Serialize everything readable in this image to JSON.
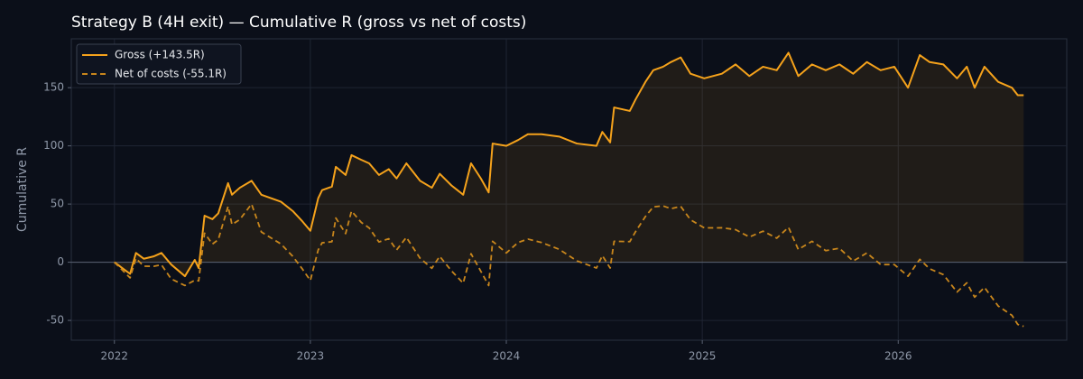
{
  "chart_data": {
    "type": "line",
    "title": "Strategy B (4H exit) — Cumulative R (gross vs net of costs)",
    "y_label": "Cumulative R",
    "x": [
      2022.0,
      2022.04,
      2022.08,
      2022.11,
      2022.15,
      2022.2,
      2022.24,
      2022.29,
      2022.36,
      2022.41,
      2022.43,
      2022.46,
      2022.5,
      2022.53,
      2022.58,
      2022.6,
      2022.64,
      2022.7,
      2022.75,
      2022.8,
      2022.85,
      2022.91,
      2022.96,
      2023.0,
      2023.04,
      2023.06,
      2023.11,
      2023.13,
      2023.18,
      2023.21,
      2023.26,
      2023.3,
      2023.35,
      2023.4,
      2023.44,
      2023.49,
      2023.56,
      2023.62,
      2023.66,
      2023.72,
      2023.78,
      2023.82,
      2023.87,
      2023.91,
      2023.93,
      2024.0,
      2024.06,
      2024.11,
      2024.18,
      2024.27,
      2024.36,
      2024.46,
      2024.49,
      2024.53,
      2024.55,
      2024.63,
      2024.66,
      2024.71,
      2024.75,
      2024.8,
      2024.84,
      2024.89,
      2024.94,
      2025.01,
      2025.1,
      2025.17,
      2025.24,
      2025.31,
      2025.38,
      2025.44,
      2025.49,
      2025.56,
      2025.63,
      2025.7,
      2025.77,
      2025.84,
      2025.91,
      2025.98,
      2026.05,
      2026.11,
      2026.16,
      2026.23,
      2026.3,
      2026.35,
      2026.39,
      2026.44,
      2026.51,
      2026.58,
      2026.61,
      2026.64
    ],
    "series": [
      {
        "name": "Gross (+143.5R)",
        "color": "#f5a21b",
        "dash": false,
        "values": [
          0,
          -5,
          -10,
          8,
          3,
          5,
          8,
          -2,
          -12,
          2,
          -5,
          40,
          37,
          42,
          68,
          58,
          64,
          70,
          58,
          55,
          52,
          44,
          35,
          27,
          55,
          62,
          65,
          82,
          75,
          92,
          88,
          85,
          75,
          80,
          72,
          85,
          70,
          64,
          76,
          66,
          58,
          85,
          72,
          60,
          102,
          100,
          105,
          110,
          110,
          108,
          102,
          100,
          112,
          103,
          133,
          130,
          140,
          155,
          165,
          168,
          172,
          176,
          162,
          158,
          162,
          170,
          160,
          168,
          165,
          180,
          160,
          170,
          165,
          170,
          162,
          172,
          165,
          168,
          150,
          178,
          172,
          170,
          158,
          168,
          150,
          168,
          155,
          150,
          143.5,
          143.5
        ]
      },
      {
        "name": "Net of costs (-55.1R)",
        "color": "#c8861c",
        "dash": true,
        "values": [
          0,
          -6.7,
          -13.4,
          3.3,
          -3.4,
          -3.5,
          -2.2,
          -14.4,
          -20,
          -15.5,
          -16,
          25,
          15.6,
          19.4,
          48,
          32.4,
          36.7,
          50,
          26,
          20.8,
          15.7,
          5.1,
          -6,
          -15.7,
          10.6,
          16.7,
          17.6,
          38,
          24.6,
          44,
          34.2,
          29.5,
          17.4,
          20.2,
          10.5,
          21.4,
          3.4,
          -5.2,
          5.1,
          -7.4,
          -18,
          7.3,
          -7.8,
          -20,
          18,
          8,
          17,
          19.9,
          16.9,
          11.1,
          1.2,
          -5,
          5.7,
          -5,
          18,
          17.7,
          26.4,
          39.3,
          47.6,
          48.4,
          46,
          48,
          36.5,
          29.5,
          29.6,
          28,
          21.7,
          26.7,
          20.7,
          30,
          11,
          18,
          10,
          12,
          1,
          8,
          -2,
          -2,
          -12,
          2.5,
          -5.6,
          -10.6,
          -25.6,
          -17.7,
          -30,
          -21.6,
          -37.6,
          -45.6,
          -53.4,
          -55.1
        ]
      }
    ],
    "xlim": [
      2021.78,
      2026.86
    ],
    "xticks": [
      2022,
      2023,
      2024,
      2025,
      2026
    ],
    "ylim": [
      -67,
      192
    ],
    "yticks": [
      -50,
      0,
      50,
      100,
      150
    ],
    "grid": true,
    "legend": "upper left"
  }
}
